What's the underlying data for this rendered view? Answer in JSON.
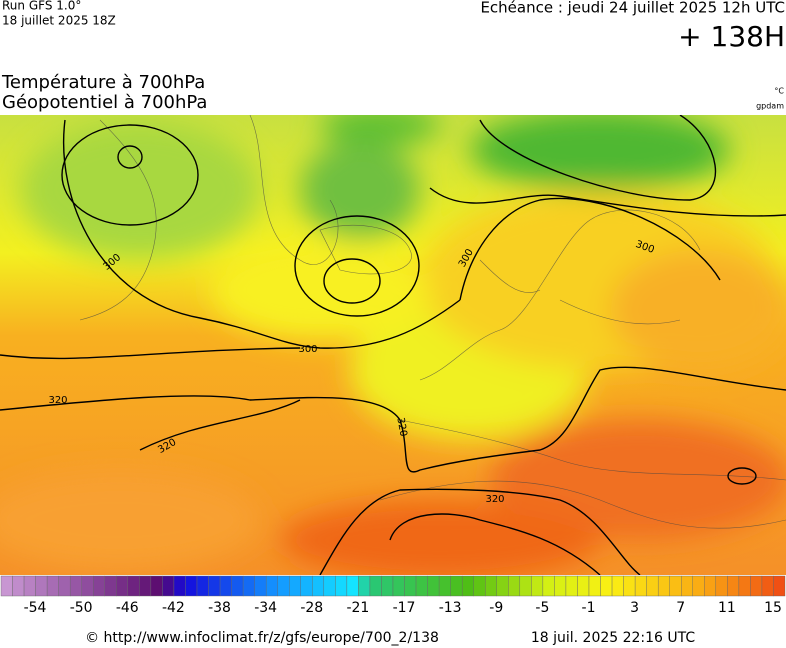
{
  "header": {
    "run": "Run GFS 1.0°",
    "run_date": "18 juillet 2025 18Z",
    "valid": "Echéance : jeudi 24 juillet 2025 12h UTC",
    "lead": "+ 138H",
    "title_1": "Température à 700hPa",
    "title_2": "Géopotentiel à 700hPa",
    "unit_1": "°C",
    "unit_2": "gpdam"
  },
  "map": {
    "contour_labels": [
      "300",
      "300",
      "300",
      "300",
      "320",
      "320",
      "320",
      "320"
    ]
  },
  "legend": {
    "labels": [
      "-54",
      "-50",
      "-46",
      "-42",
      "-38",
      "-34",
      "-28",
      "-21",
      "-17",
      "-13",
      "-9",
      "-5",
      "-1",
      "3",
      "7",
      "11",
      "15"
    ]
  },
  "footer": {
    "source": "© http://www.infoclimat.fr/z/gfs/europe/700_2/138",
    "generated": "18 juil. 2025 22:16 UTC"
  }
}
